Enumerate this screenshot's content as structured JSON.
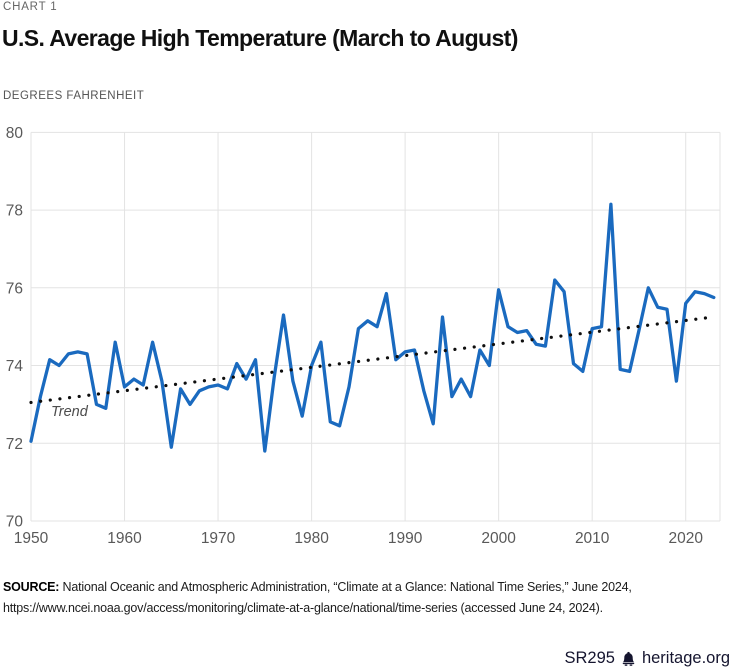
{
  "header": {
    "kicker": "CHART 1",
    "title": "U.S. Average High Temperature (March to August)",
    "unit_label": "DEGREES FAHRENHEIT"
  },
  "chart_data": {
    "type": "line",
    "title": "U.S. Average High Temperature (March to August)",
    "ylabel": "DEGREES FAHRENHEIT",
    "grid": true,
    "ylim": [
      70,
      80
    ],
    "xlim": [
      1950,
      2023
    ],
    "yticks": [
      70,
      72,
      74,
      76,
      78,
      80
    ],
    "xticks": [
      1950,
      1960,
      1970,
      1980,
      1990,
      2000,
      2010,
      2020
    ],
    "x": [
      1950,
      1951,
      1952,
      1953,
      1954,
      1955,
      1956,
      1957,
      1958,
      1959,
      1960,
      1961,
      1962,
      1963,
      1964,
      1965,
      1966,
      1967,
      1968,
      1969,
      1970,
      1971,
      1972,
      1973,
      1974,
      1975,
      1976,
      1977,
      1978,
      1979,
      1980,
      1981,
      1982,
      1983,
      1984,
      1985,
      1986,
      1987,
      1988,
      1989,
      1990,
      1991,
      1992,
      1993,
      1994,
      1995,
      1996,
      1997,
      1998,
      1999,
      2000,
      2001,
      2002,
      2003,
      2004,
      2005,
      2006,
      2007,
      2008,
      2009,
      2010,
      2011,
      2012,
      2013,
      2014,
      2015,
      2016,
      2017,
      2018,
      2019,
      2020,
      2021,
      2022,
      2023
    ],
    "series": [
      {
        "name": "U.S. average high temperature (degrees Fahrenheit)",
        "color": "#1a6abf",
        "values": [
          72.05,
          73.2,
          74.15,
          74.0,
          74.3,
          74.35,
          74.3,
          73.0,
          72.9,
          74.6,
          73.45,
          73.65,
          73.5,
          74.6,
          73.6,
          71.9,
          73.4,
          73.0,
          73.35,
          73.45,
          73.5,
          73.4,
          74.05,
          73.65,
          74.15,
          71.8,
          73.7,
          75.3,
          73.6,
          72.7,
          74.0,
          74.6,
          72.55,
          72.45,
          73.45,
          74.95,
          75.15,
          75.0,
          75.85,
          74.15,
          74.35,
          74.4,
          73.35,
          72.5,
          75.25,
          73.2,
          73.65,
          73.2,
          74.4,
          74.0,
          75.95,
          75.0,
          74.85,
          74.9,
          74.55,
          74.5,
          76.2,
          75.9,
          74.05,
          73.85,
          74.95,
          75.0,
          78.15,
          73.9,
          73.85,
          74.9,
          76.0,
          75.5,
          75.45,
          73.6,
          75.6,
          75.9,
          75.85,
          75.75
        ]
      }
    ],
    "trend": {
      "label": "Trend",
      "style": "dotted",
      "color": "#0e0e0e",
      "start": {
        "x": 1950,
        "y": 73.05
      },
      "end": {
        "x": 2023,
        "y": 75.25
      }
    },
    "colors": {
      "gridline": "#e3e3e3",
      "tick_text": "#595959"
    }
  },
  "footer": {
    "source_bold": "SOURCE:",
    "source_rest": " National Oceanic and Atmospheric Administration, “Climate at a Glance: National Time Series,” June 2024,",
    "source_line2": "https://www.ncei.noaa.gov/access/monitoring/climate-at-a-glance/national/time-series (accessed June 24, 2024).",
    "report_id": "SR295",
    "bell_icon": "liberty-bell-icon",
    "brand": "heritage.org"
  }
}
